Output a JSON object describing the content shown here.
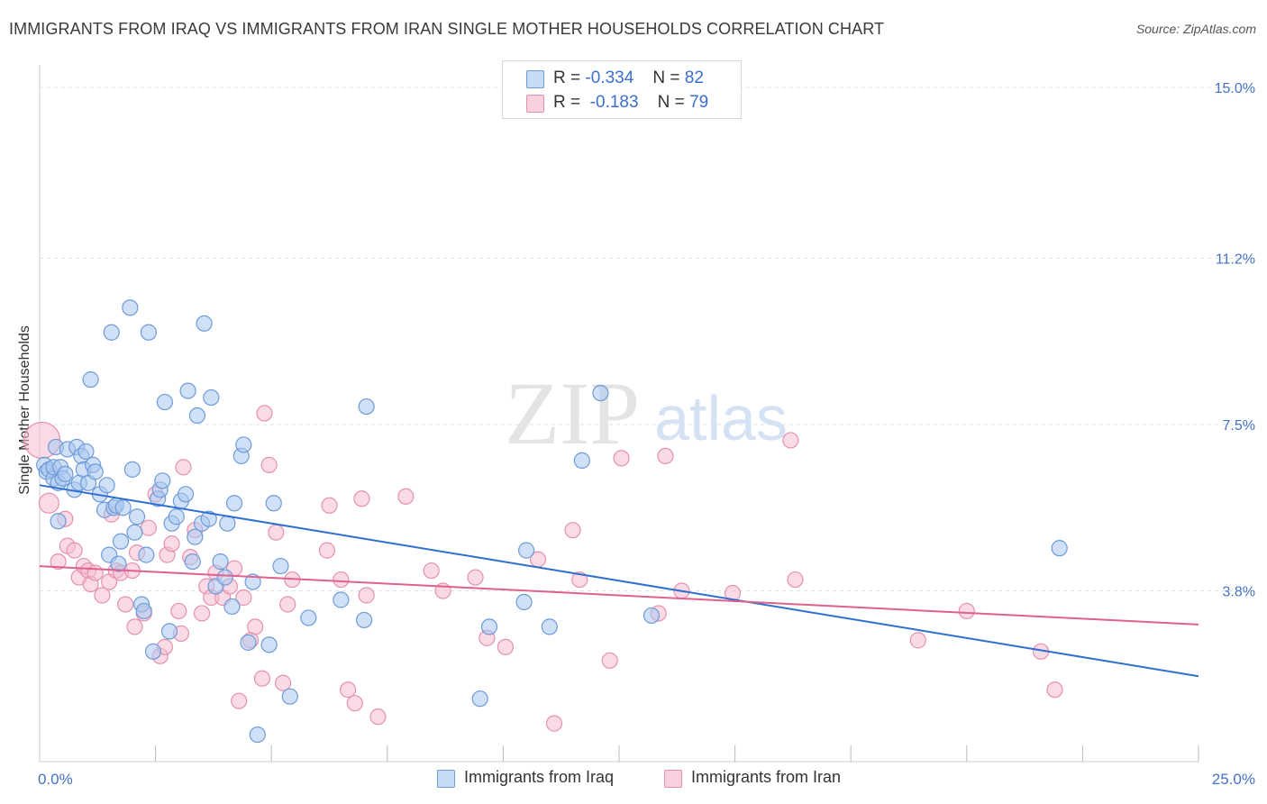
{
  "title": "IMMIGRANTS FROM IRAQ VS IMMIGRANTS FROM IRAN SINGLE MOTHER HOUSEHOLDS CORRELATION CHART",
  "source": "Source: ZipAtlas.com",
  "watermark": {
    "zip": "ZIP",
    "atlas": "atlas"
  },
  "legend": {
    "series1": {
      "r_label": "R =",
      "r_value": "-0.334",
      "n_label": "N =",
      "n_value": "82"
    },
    "series2": {
      "r_label": "R =",
      "r_value": "-0.183",
      "n_label": "N =",
      "n_value": "79"
    }
  },
  "colors": {
    "iraq_fill": "#aac8f0",
    "iraq_stroke": "#6e9ad8",
    "iraq_line": "#2e6fd0",
    "iran_fill": "#f6bdd0",
    "iran_stroke": "#e591ad",
    "iran_line": "#e0608e",
    "tick": "#4472c4"
  },
  "chart_data": {
    "type": "scatter",
    "title": "IMMIGRANTS FROM IRAQ VS IMMIGRANTS FROM IRAN SINGLE MOTHER HOUSEHOLDS CORRELATION CHART",
    "xlabel": "",
    "ylabel": "Single Mother Households",
    "xlim": [
      0,
      25
    ],
    "ylim": [
      0,
      15.5
    ],
    "x_tick_labels": [
      "0.0%",
      "25.0%"
    ],
    "y_ticks": [
      3.8,
      7.5,
      11.2,
      15.0
    ],
    "y_tick_labels": [
      "3.8%",
      "7.5%",
      "11.2%",
      "15.0%"
    ],
    "grid": "horizontal dashed",
    "legend_position": "top-center",
    "series": [
      {
        "name": "Immigrants from Iraq",
        "color": "#aac8f0",
        "r": -0.334,
        "n": 82,
        "trend": {
          "x": [
            0,
            25
          ],
          "y": [
            6.15,
            1.9
          ]
        },
        "points": [
          [
            0.1,
            6.6
          ],
          [
            0.15,
            6.45
          ],
          [
            0.2,
            6.5
          ],
          [
            0.3,
            6.3
          ],
          [
            0.3,
            6.55
          ],
          [
            0.35,
            7.0
          ],
          [
            0.4,
            6.2
          ],
          [
            0.4,
            5.35
          ],
          [
            0.45,
            6.55
          ],
          [
            0.5,
            6.3
          ],
          [
            0.55,
            6.4
          ],
          [
            0.6,
            6.95
          ],
          [
            0.75,
            6.05
          ],
          [
            0.8,
            7.0
          ],
          [
            0.85,
            6.2
          ],
          [
            0.9,
            6.8
          ],
          [
            0.95,
            6.5
          ],
          [
            1.0,
            6.9
          ],
          [
            1.05,
            6.2
          ],
          [
            1.1,
            8.5
          ],
          [
            1.15,
            6.6
          ],
          [
            1.2,
            6.45
          ],
          [
            1.3,
            5.95
          ],
          [
            1.4,
            5.6
          ],
          [
            1.45,
            6.15
          ],
          [
            1.5,
            4.6
          ],
          [
            1.55,
            9.55
          ],
          [
            1.6,
            5.65
          ],
          [
            1.65,
            5.7
          ],
          [
            1.7,
            4.4
          ],
          [
            1.75,
            4.9
          ],
          [
            1.8,
            5.65
          ],
          [
            1.95,
            10.1
          ],
          [
            2.0,
            6.5
          ],
          [
            2.05,
            5.1
          ],
          [
            2.1,
            5.45
          ],
          [
            2.2,
            3.5
          ],
          [
            2.25,
            3.35
          ],
          [
            2.3,
            4.6
          ],
          [
            2.35,
            9.55
          ],
          [
            2.45,
            2.45
          ],
          [
            2.55,
            5.85
          ],
          [
            2.6,
            6.05
          ],
          [
            2.65,
            6.25
          ],
          [
            2.7,
            8.0
          ],
          [
            2.8,
            2.9
          ],
          [
            2.85,
            5.3
          ],
          [
            2.95,
            5.45
          ],
          [
            3.05,
            5.8
          ],
          [
            3.15,
            5.95
          ],
          [
            3.2,
            8.25
          ],
          [
            3.3,
            4.45
          ],
          [
            3.35,
            5.0
          ],
          [
            3.4,
            7.7
          ],
          [
            3.5,
            5.3
          ],
          [
            3.55,
            9.75
          ],
          [
            3.65,
            5.4
          ],
          [
            3.7,
            8.1
          ],
          [
            3.8,
            3.9
          ],
          [
            3.9,
            4.45
          ],
          [
            4.0,
            4.1
          ],
          [
            4.05,
            5.3
          ],
          [
            4.15,
            3.45
          ],
          [
            4.2,
            5.75
          ],
          [
            4.35,
            6.8
          ],
          [
            4.4,
            7.05
          ],
          [
            4.5,
            2.65
          ],
          [
            4.6,
            4.0
          ],
          [
            4.7,
            0.6
          ],
          [
            4.95,
            2.6
          ],
          [
            5.05,
            5.75
          ],
          [
            5.2,
            4.35
          ],
          [
            5.4,
            1.45
          ],
          [
            5.8,
            3.2
          ],
          [
            6.5,
            3.6
          ],
          [
            7.0,
            3.15
          ],
          [
            7.05,
            7.9
          ],
          [
            9.5,
            1.4
          ],
          [
            9.7,
            3.0
          ],
          [
            10.45,
            3.55
          ],
          [
            10.5,
            4.7
          ],
          [
            11.0,
            3.0
          ],
          [
            11.7,
            6.7
          ],
          [
            12.1,
            8.2
          ],
          [
            13.2,
            3.25
          ],
          [
            22.0,
            4.75
          ]
        ]
      },
      {
        "name": "Immigrants from Iran",
        "color": "#f6bdd0",
        "r": -0.183,
        "n": 79,
        "trend": {
          "x": [
            0,
            25
          ],
          "y": [
            4.35,
            3.05
          ]
        },
        "points": [
          [
            0.05,
            7.15
          ],
          [
            0.2,
            5.75
          ],
          [
            0.4,
            4.45
          ],
          [
            0.55,
            5.4
          ],
          [
            0.6,
            4.8
          ],
          [
            0.75,
            4.7
          ],
          [
            0.85,
            4.1
          ],
          [
            0.95,
            4.35
          ],
          [
            1.05,
            4.25
          ],
          [
            1.1,
            3.95
          ],
          [
            1.2,
            4.2
          ],
          [
            1.35,
            3.7
          ],
          [
            1.5,
            4.0
          ],
          [
            1.55,
            5.5
          ],
          [
            1.65,
            4.25
          ],
          [
            1.75,
            4.2
          ],
          [
            1.85,
            3.5
          ],
          [
            2.0,
            4.25
          ],
          [
            2.05,
            3.0
          ],
          [
            2.1,
            4.65
          ],
          [
            2.25,
            3.3
          ],
          [
            2.35,
            5.2
          ],
          [
            2.5,
            5.95
          ],
          [
            2.6,
            2.35
          ],
          [
            2.7,
            2.55
          ],
          [
            2.75,
            4.6
          ],
          [
            2.85,
            4.85
          ],
          [
            3.0,
            3.35
          ],
          [
            3.05,
            2.85
          ],
          [
            3.1,
            6.55
          ],
          [
            3.25,
            4.55
          ],
          [
            3.35,
            5.15
          ],
          [
            3.5,
            3.3
          ],
          [
            3.6,
            3.9
          ],
          [
            3.7,
            3.65
          ],
          [
            3.8,
            4.2
          ],
          [
            3.95,
            3.65
          ],
          [
            4.1,
            3.9
          ],
          [
            4.2,
            4.3
          ],
          [
            4.3,
            1.35
          ],
          [
            4.4,
            3.65
          ],
          [
            4.55,
            2.7
          ],
          [
            4.65,
            3.0
          ],
          [
            4.8,
            1.85
          ],
          [
            4.85,
            7.75
          ],
          [
            4.95,
            6.6
          ],
          [
            5.1,
            5.1
          ],
          [
            5.25,
            1.75
          ],
          [
            5.35,
            3.5
          ],
          [
            5.45,
            4.05
          ],
          [
            6.2,
            4.7
          ],
          [
            6.25,
            5.7
          ],
          [
            6.5,
            4.05
          ],
          [
            6.65,
            1.6
          ],
          [
            6.8,
            1.3
          ],
          [
            6.95,
            5.85
          ],
          [
            7.05,
            3.7
          ],
          [
            7.3,
            1.0
          ],
          [
            7.9,
            5.9
          ],
          [
            8.45,
            4.25
          ],
          [
            8.7,
            3.8
          ],
          [
            9.4,
            4.1
          ],
          [
            9.65,
            2.75
          ],
          [
            10.05,
            2.55
          ],
          [
            10.75,
            4.5
          ],
          [
            11.1,
            0.85
          ],
          [
            11.5,
            5.15
          ],
          [
            11.65,
            4.05
          ],
          [
            12.3,
            2.25
          ],
          [
            12.55,
            6.75
          ],
          [
            13.35,
            3.3
          ],
          [
            13.5,
            6.8
          ],
          [
            13.85,
            3.8
          ],
          [
            14.95,
            3.75
          ],
          [
            16.2,
            7.15
          ],
          [
            16.3,
            4.05
          ],
          [
            18.95,
            2.7
          ],
          [
            20.0,
            3.35
          ],
          [
            21.6,
            2.45
          ],
          [
            21.9,
            1.6
          ]
        ]
      }
    ]
  },
  "bottom_legend": {
    "series1": "Immigrants from Iraq",
    "series2": "Immigrants from Iran"
  }
}
